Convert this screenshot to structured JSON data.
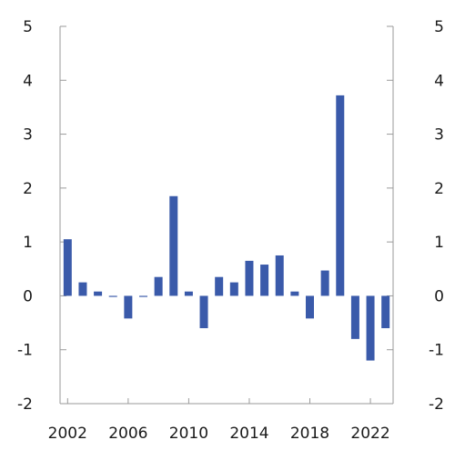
{
  "chart_data": {
    "type": "bar",
    "x": [
      2002,
      2003,
      2004,
      2005,
      2006,
      2007,
      2008,
      2009,
      2010,
      2011,
      2012,
      2013,
      2014,
      2015,
      2016,
      2017,
      2018,
      2019,
      2020,
      2021,
      2022,
      2023
    ],
    "values": [
      1.05,
      0.25,
      0.08,
      -0.02,
      -0.42,
      -0.02,
      0.35,
      1.85,
      0.08,
      -0.6,
      0.35,
      0.25,
      0.65,
      0.58,
      0.75,
      0.08,
      -0.42,
      0.47,
      3.72,
      -0.8,
      -1.2,
      -0.6
    ],
    "ylim": [
      -2,
      5
    ],
    "yticks": [
      -2,
      -1,
      0,
      1,
      2,
      3,
      4,
      5
    ],
    "ytick_labels": [
      "-2",
      "-1",
      "0",
      "1",
      "2",
      "3",
      "4",
      "5"
    ],
    "xtick_labels": [
      "2002",
      "2006",
      "2010",
      "2014",
      "2018",
      "2022"
    ],
    "bar_color": "#3a5aaa",
    "grid": false,
    "dual_y_axis": true,
    "title": "",
    "xlabel": "",
    "ylabel": ""
  }
}
